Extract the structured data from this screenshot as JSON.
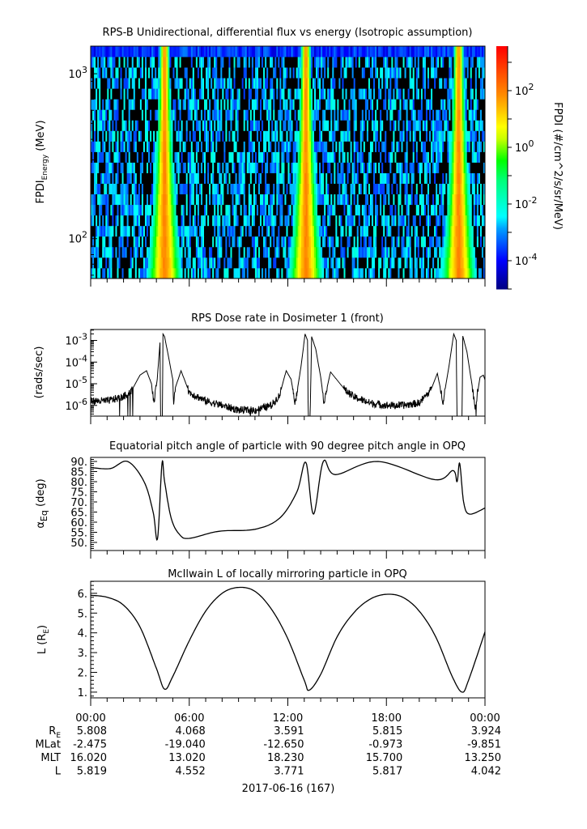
{
  "chart_data": [
    {
      "type": "heatmap",
      "title": "RPS-B  Unidirectional, differential flux vs energy (Isotropic assumption)",
      "ylabel_main": "FPDI",
      "ylabel_sub": "Energy",
      "ylabel_unit": " (MeV)",
      "yscale": "log",
      "ylim": [
        57.3,
        1470
      ],
      "yticks": [
        {
          "value": 100,
          "base": "10",
          "exp": "2"
        },
        {
          "value": 1000,
          "base": "10",
          "exp": "3"
        }
      ],
      "xlim_hours": [
        0,
        24
      ],
      "band_center_hours": [
        4.5,
        13.1,
        22.4
      ],
      "band_peak_log10_flux": 2.0,
      "background_log10_flux_range": [
        -3.6,
        -2.0
      ],
      "colorbar": {
        "label": "FPDI (#/cm^2/s/sr/MeV)",
        "scale": "log",
        "range_log10": [
          -5,
          3.57
        ],
        "ticks": [
          {
            "value": -4,
            "base": "10",
            "exp": "-4"
          },
          {
            "value": -2,
            "base": "10",
            "exp": "-2"
          },
          {
            "value": 0,
            "base": "10",
            "exp": "0"
          },
          {
            "value": 2,
            "base": "10",
            "exp": "2"
          }
        ],
        "colors": [
          "#000082",
          "#0000ff",
          "#00a0ff",
          "#00ffff",
          "#00ff78",
          "#00ff00",
          "#c8ff00",
          "#ffff00",
          "#ff8c00",
          "#ff0000"
        ]
      }
    },
    {
      "type": "line",
      "title": "RPS  Dose rate in Dosimeter 1 (front)",
      "ylabel": "(rads/sec)",
      "yscale": "log",
      "ylim": [
        3.2e-07,
        0.0032
      ],
      "yticks": [
        {
          "value": 1e-06,
          "base": "10",
          "exp": "-6"
        },
        {
          "value": 1e-05,
          "base": "10",
          "exp": "-5"
        },
        {
          "value": 0.0001,
          "base": "10",
          "exp": "-4"
        },
        {
          "value": 0.001,
          "base": "10",
          "exp": "-3"
        }
      ],
      "points_hours_value": [
        [
          0,
          1.6e-06
        ],
        [
          1,
          1.6e-06
        ],
        [
          2,
          2.5e-06
        ],
        [
          2.5,
          5e-06
        ],
        [
          3,
          2.5e-05
        ],
        [
          3.4,
          4e-05
        ],
        [
          3.7,
          1e-05
        ],
        [
          3.85,
          1.3e-06
        ],
        [
          4.05,
          1.6e-05
        ],
        [
          4.22,
          0.0008
        ],
        [
          4.26,
          1e-07
        ],
        [
          4.36,
          1e-07
        ],
        [
          4.4,
          0.002
        ],
        [
          4.5,
          0.0015
        ],
        [
          4.8,
          0.0001
        ],
        [
          5.0,
          1.5e-05
        ],
        [
          5.05,
          1e-06
        ],
        [
          5.1,
          5e-06
        ],
        [
          5.5,
          4e-05
        ],
        [
          6,
          4e-06
        ],
        [
          7,
          1.6e-06
        ],
        [
          8,
          1e-06
        ],
        [
          9,
          6e-07
        ],
        [
          10,
          6e-07
        ],
        [
          11,
          1e-06
        ],
        [
          11.5,
          3e-06
        ],
        [
          11.9,
          4e-05
        ],
        [
          12.2,
          1.6e-05
        ],
        [
          12.45,
          1.3e-06
        ],
        [
          12.8,
          6e-05
        ],
        [
          13.05,
          0.002
        ],
        [
          13.2,
          0.001
        ],
        [
          13.25,
          1e-07
        ],
        [
          13.35,
          1e-07
        ],
        [
          13.45,
          0.0015
        ],
        [
          13.7,
          0.0004
        ],
        [
          14.0,
          2e-05
        ],
        [
          14.2,
          1.5e-06
        ],
        [
          14.6,
          3.5e-05
        ],
        [
          15.5,
          5e-06
        ],
        [
          16,
          2.5e-06
        ],
        [
          17,
          1.3e-06
        ],
        [
          18,
          1e-06
        ],
        [
          19,
          1e-06
        ],
        [
          20,
          1.3e-06
        ],
        [
          20.7,
          5e-06
        ],
        [
          21.1,
          3e-05
        ],
        [
          21.45,
          1.5e-06
        ],
        [
          21.8,
          6e-05
        ],
        [
          22.1,
          0.002
        ],
        [
          22.25,
          0.001
        ],
        [
          22.3,
          1e-07
        ],
        [
          22.6,
          1e-07
        ],
        [
          22.65,
          0.0016
        ],
        [
          22.9,
          0.0003
        ],
        [
          23.2,
          1e-05
        ],
        [
          23.4,
          8e-07
        ],
        [
          23.7,
          2e-05
        ],
        [
          23.9,
          2.5e-05
        ],
        [
          24,
          1.5e-05
        ]
      ]
    },
    {
      "type": "line",
      "title": "Equatorial pitch angle of particle with 90 degree pitch angle in OPQ",
      "ylabel_main": "α",
      "ylabel_sub": "Eq",
      "ylabel_unit": " (deg)",
      "ylim": [
        46,
        92
      ],
      "yticks": [
        {
          "value": 50,
          "label": "50."
        },
        {
          "value": 55,
          "label": "55."
        },
        {
          "value": 60,
          "label": "60."
        },
        {
          "value": 65,
          "label": "65."
        },
        {
          "value": 70,
          "label": "70."
        },
        {
          "value": 75,
          "label": "75."
        },
        {
          "value": 80,
          "label": "80."
        },
        {
          "value": 85,
          "label": "85."
        },
        {
          "value": 90,
          "label": "90."
        }
      ],
      "points_hours_value": [
        [
          0,
          87
        ],
        [
          1.2,
          86.5
        ],
        [
          2.25,
          90
        ],
        [
          3.25,
          80
        ],
        [
          3.8,
          65
        ],
        [
          4.07,
          52
        ],
        [
          4.34,
          89
        ],
        [
          4.5,
          80
        ],
        [
          4.9,
          62
        ],
        [
          5.4,
          54
        ],
        [
          6,
          52
        ],
        [
          7.8,
          55.5
        ],
        [
          10,
          56.5
        ],
        [
          11.5,
          62
        ],
        [
          12.55,
          75
        ],
        [
          13.1,
          89.5
        ],
        [
          13.56,
          64
        ],
        [
          14.16,
          90
        ],
        [
          14.9,
          83.5
        ],
        [
          17.5,
          90
        ],
        [
          20.95,
          81
        ],
        [
          22.05,
          85.5
        ],
        [
          22.3,
          80
        ],
        [
          22.46,
          89
        ],
        [
          22.7,
          70
        ],
        [
          23.05,
          64
        ],
        [
          24,
          67
        ]
      ]
    },
    {
      "type": "line",
      "title": "McIlwain L of locally mirroring particle in OPQ",
      "ylabel_main": "L (R",
      "ylabel_sub": "E",
      "ylabel_unit": ")",
      "ylim": [
        0.71,
        6.61
      ],
      "yticks": [
        {
          "value": 1,
          "label": "1."
        },
        {
          "value": 2,
          "label": "2."
        },
        {
          "value": 3,
          "label": "3."
        },
        {
          "value": 4,
          "label": "4."
        },
        {
          "value": 5,
          "label": "5."
        },
        {
          "value": 6,
          "label": "6."
        }
      ],
      "points_hours_value": [
        [
          0,
          5.9
        ],
        [
          1,
          5.8
        ],
        [
          2,
          5.4
        ],
        [
          3,
          4.3
        ],
        [
          4,
          2.2
        ],
        [
          4.5,
          1.15
        ],
        [
          5,
          1.8
        ],
        [
          6,
          3.6
        ],
        [
          7,
          5.1
        ],
        [
          8,
          6.0
        ],
        [
          9,
          6.3
        ],
        [
          10,
          6.1
        ],
        [
          11,
          5.2
        ],
        [
          12,
          3.7
        ],
        [
          13,
          1.6
        ],
        [
          13.3,
          1.1
        ],
        [
          14,
          1.9
        ],
        [
          15,
          3.8
        ],
        [
          16,
          5.0
        ],
        [
          17,
          5.7
        ],
        [
          18,
          5.95
        ],
        [
          19,
          5.8
        ],
        [
          20,
          5.1
        ],
        [
          21,
          3.8
        ],
        [
          22,
          1.8
        ],
        [
          22.6,
          1.0
        ],
        [
          23,
          1.6
        ],
        [
          24,
          4.05
        ]
      ]
    }
  ],
  "x_axis": {
    "tick_labels": [
      "00:00",
      "06:00",
      "12:00",
      "18:00",
      "00:00"
    ],
    "rows": [
      {
        "label": "R",
        "label_sub": "E",
        "values": [
          "5.808",
          "4.068",
          "3.591",
          "5.815",
          "3.924"
        ]
      },
      {
        "label": "MLat",
        "label_sub": "",
        "values": [
          "-2.475",
          "-19.040",
          "-12.650",
          "-0.973",
          "-9.851"
        ]
      },
      {
        "label": "MLT",
        "label_sub": "",
        "values": [
          "16.020",
          "13.020",
          "18.230",
          "15.700",
          "13.250"
        ]
      },
      {
        "label": "L",
        "label_sub": "",
        "values": [
          "5.819",
          "4.552",
          "3.771",
          "5.817",
          "4.042"
        ]
      }
    ],
    "date_label": "2017-06-16 (167)"
  }
}
